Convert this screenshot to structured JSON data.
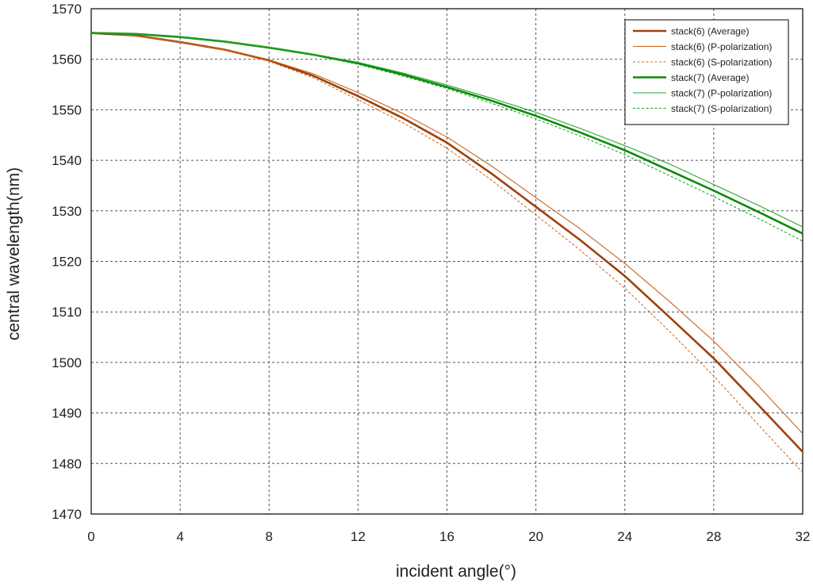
{
  "chart_data": {
    "type": "line",
    "xlabel": "incident angle(°)",
    "ylabel": "central wavelength(nm)",
    "xlim": [
      0,
      32
    ],
    "ylim": [
      1470,
      1570
    ],
    "xticks": [
      0,
      4,
      8,
      12,
      16,
      20,
      24,
      28,
      32
    ],
    "yticks": [
      1470,
      1480,
      1490,
      1500,
      1510,
      1520,
      1530,
      1540,
      1550,
      1560,
      1570
    ],
    "grid": true,
    "legend_position": "top-right",
    "series": [
      {
        "name": "stack(6) (Average)",
        "color": "#a0400a",
        "style": "solid-thick",
        "x": [
          0,
          2,
          4,
          6,
          8,
          10,
          12,
          14,
          16,
          18,
          20,
          22,
          24,
          26,
          28,
          30,
          32
        ],
        "y": [
          1565.2,
          1564.7,
          1563.4,
          1561.9,
          1559.8,
          1556.7,
          1552.7,
          1548.4,
          1543.5,
          1537.4,
          1530.8,
          1524.2,
          1517.1,
          1509.0,
          1500.8,
          1491.6,
          1482.3
        ]
      },
      {
        "name": "stack(6) (P-polarization)",
        "color": "#c8641e",
        "style": "solid-thin",
        "x": [
          0,
          2,
          4,
          6,
          8,
          10,
          12,
          14,
          16,
          18,
          20,
          22,
          24,
          26,
          28,
          30,
          32
        ],
        "y": [
          1565.2,
          1564.7,
          1563.4,
          1561.9,
          1559.9,
          1557.1,
          1553.4,
          1549.3,
          1544.6,
          1538.9,
          1532.6,
          1526.4,
          1519.6,
          1512.1,
          1504.2,
          1495.4,
          1485.9
        ]
      },
      {
        "name": "stack(6) (S-polarization)",
        "color": "#d2691e",
        "style": "dashed",
        "x": [
          0,
          2,
          4,
          6,
          8,
          10,
          12,
          14,
          16,
          18,
          20,
          22,
          24,
          26,
          28,
          30,
          32
        ],
        "y": [
          1565.2,
          1564.7,
          1563.4,
          1561.8,
          1559.6,
          1556.3,
          1552.0,
          1547.5,
          1542.4,
          1536.1,
          1529.2,
          1522.2,
          1514.7,
          1506.2,
          1497.3,
          1487.7,
          1478.2
        ]
      },
      {
        "name": "stack(7) (Average)",
        "color": "#0a8c0a",
        "style": "solid-thick",
        "x": [
          0,
          2,
          4,
          6,
          8,
          10,
          12,
          14,
          16,
          18,
          20,
          22,
          24,
          26,
          28,
          30,
          32
        ],
        "y": [
          1565.2,
          1565.0,
          1564.4,
          1563.5,
          1562.3,
          1560.9,
          1559.2,
          1557.0,
          1554.5,
          1551.8,
          1548.8,
          1545.5,
          1542.0,
          1538.0,
          1534.0,
          1529.8,
          1525.5
        ]
      },
      {
        "name": "stack(7) (P-polarization)",
        "color": "#2aa52a",
        "style": "solid-thin",
        "x": [
          0,
          2,
          4,
          6,
          8,
          10,
          12,
          14,
          16,
          18,
          20,
          22,
          24,
          26,
          28,
          30,
          32
        ],
        "y": [
          1565.2,
          1565.0,
          1564.4,
          1563.5,
          1562.4,
          1561.0,
          1559.4,
          1557.3,
          1554.9,
          1552.3,
          1549.5,
          1546.3,
          1542.9,
          1539.3,
          1535.2,
          1531.1,
          1526.8
        ]
      },
      {
        "name": "stack(7) (S-polarization)",
        "color": "#1fa01f",
        "style": "dashed",
        "x": [
          0,
          2,
          4,
          6,
          8,
          10,
          12,
          14,
          16,
          18,
          20,
          22,
          24,
          26,
          28,
          30,
          32
        ],
        "y": [
          1565.2,
          1565.0,
          1564.4,
          1563.4,
          1562.2,
          1560.8,
          1559.0,
          1556.7,
          1554.2,
          1551.3,
          1548.2,
          1544.8,
          1541.1,
          1537.0,
          1532.8,
          1528.5,
          1524.0
        ]
      }
    ]
  }
}
